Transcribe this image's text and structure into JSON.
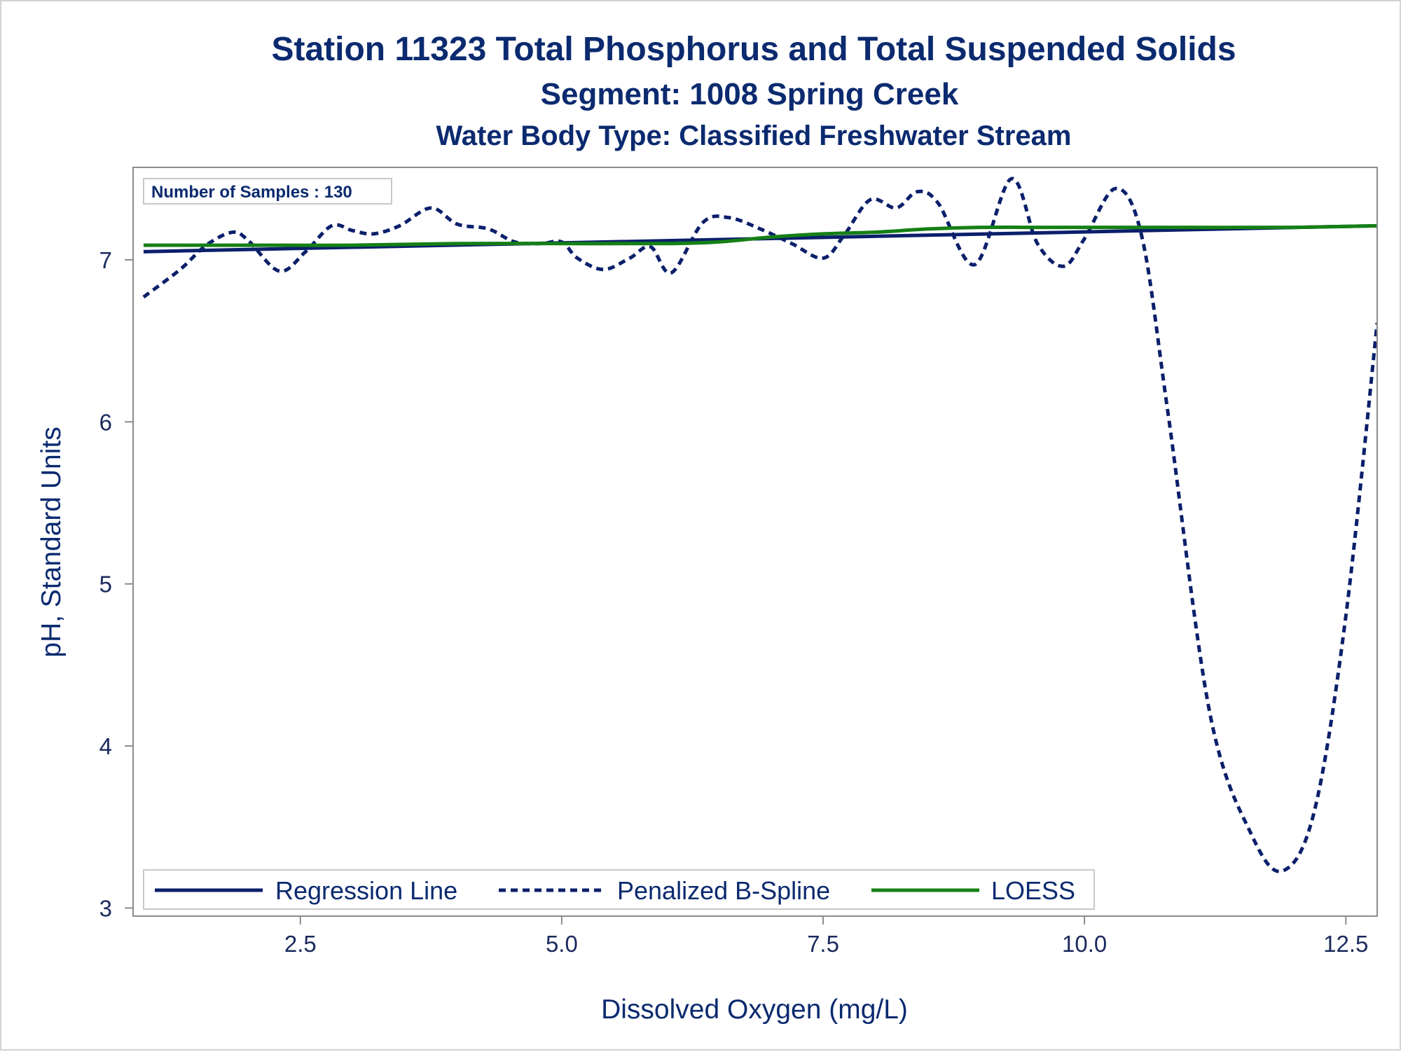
{
  "title": "Station 11323  Total Phosphorus and Total Suspended Solids",
  "subtitle": "Segment: 1008  Spring Creek",
  "subtitle2": "Water Body Type: Classified Freshwater Stream",
  "inset": "Number of Samples : 130",
  "colors": {
    "regression": "#0b1f6b",
    "spline": "#0b1f6b",
    "loess": "#158015",
    "text": "#0b2a6f",
    "axis": "#8c8c8c"
  },
  "chart_data": {
    "type": "line",
    "xlabel": "Dissolved Oxygen (mg/L)",
    "ylabel": "pH, Standard Units",
    "xlim": [
      0.9,
      12.8
    ],
    "ylim": [
      2.95,
      7.57
    ],
    "x_ticks": [
      2.5,
      5.0,
      7.5,
      10.0,
      12.5
    ],
    "x_tick_labels": [
      "2.5",
      "5.0",
      "7.5",
      "10.0",
      "12.5"
    ],
    "y_ticks": [
      3,
      4,
      5,
      6,
      7
    ],
    "y_tick_labels": [
      "3",
      "4",
      "5",
      "6",
      "7"
    ],
    "grid": false,
    "legend_position": "bottom-left",
    "series": [
      {
        "name": "Regression Line",
        "style": "solid",
        "x": [
          1.0,
          12.8
        ],
        "y": [
          7.05,
          7.21
        ]
      },
      {
        "name": "Penalized B-Spline",
        "style": "dashed",
        "x": [
          1.0,
          1.35,
          1.6,
          1.85,
          2.0,
          2.3,
          2.55,
          2.8,
          3.0,
          3.2,
          3.45,
          3.75,
          4.0,
          4.3,
          4.55,
          4.8,
          5.0,
          5.15,
          5.4,
          5.65,
          5.85,
          6.05,
          6.35,
          6.6,
          6.9,
          7.2,
          7.5,
          7.7,
          7.95,
          8.2,
          8.4,
          8.6,
          8.95,
          9.3,
          9.55,
          9.8,
          10.0,
          10.3,
          10.55,
          10.8,
          11.2,
          11.6,
          11.9,
          12.2,
          12.5,
          12.8
        ],
        "y": [
          6.77,
          6.94,
          7.09,
          7.17,
          7.12,
          6.93,
          7.05,
          7.21,
          7.18,
          7.16,
          7.21,
          7.32,
          7.22,
          7.19,
          7.11,
          7.1,
          7.11,
          7.01,
          6.94,
          7.01,
          7.08,
          6.92,
          7.23,
          7.26,
          7.19,
          7.1,
          7.01,
          7.15,
          7.37,
          7.32,
          7.42,
          7.35,
          6.97,
          7.5,
          7.1,
          6.96,
          7.13,
          7.44,
          7.14,
          6.05,
          4.2,
          3.45,
          3.23,
          3.6,
          4.8,
          6.61
        ]
      },
      {
        "name": "LOESS",
        "style": "solid",
        "x": [
          1.0,
          2.0,
          3.0,
          4.0,
          5.0,
          6.0,
          6.5,
          7.0,
          7.5,
          8.0,
          8.5,
          9.0,
          9.5,
          10.0,
          11.0,
          12.0,
          12.8
        ],
        "y": [
          7.09,
          7.09,
          7.09,
          7.1,
          7.1,
          7.1,
          7.11,
          7.14,
          7.16,
          7.17,
          7.19,
          7.2,
          7.2,
          7.2,
          7.2,
          7.2,
          7.21
        ]
      }
    ]
  }
}
